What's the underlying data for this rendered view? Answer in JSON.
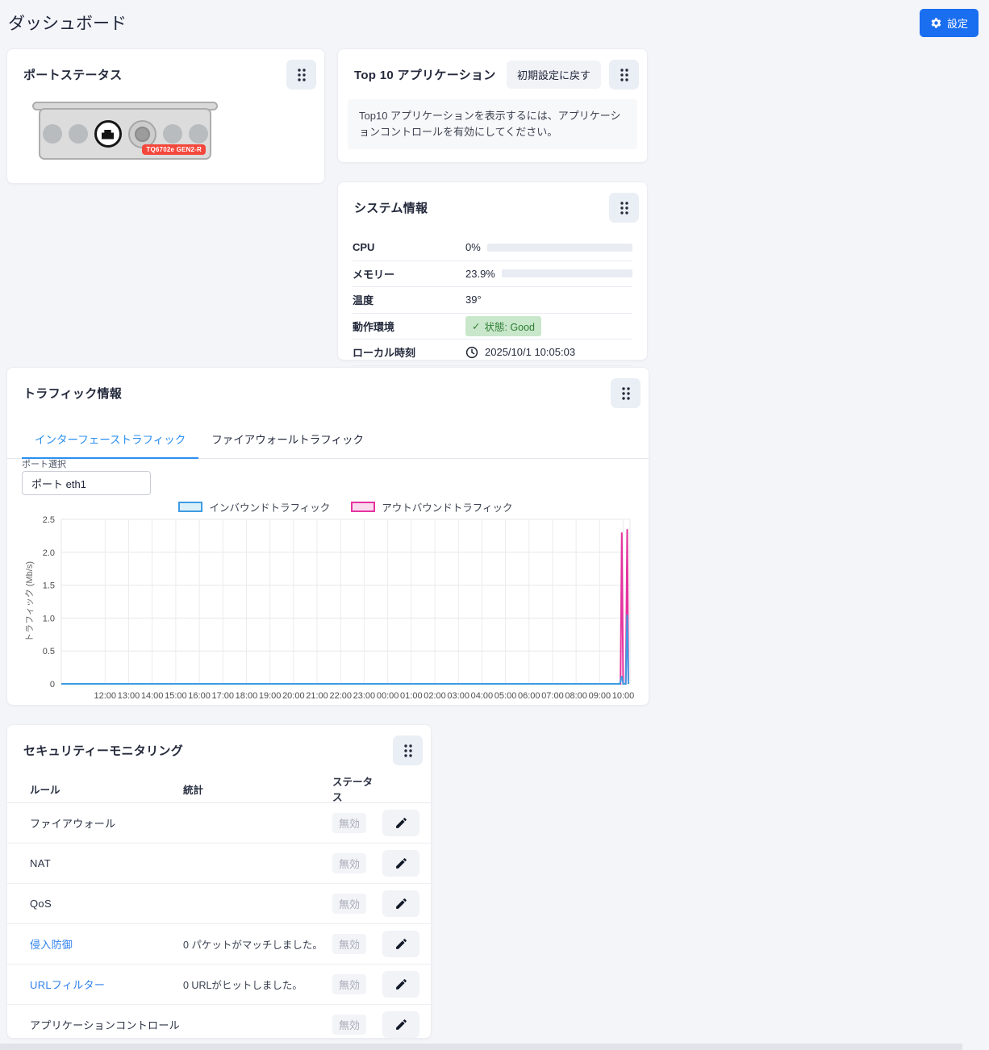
{
  "page": {
    "title": "ダッシュボード",
    "settings_button": "設定"
  },
  "port_status": {
    "title": "ポートステータス",
    "device_model": "TQ6702e GEN2-R"
  },
  "top_applications": {
    "title": "Top 10 アプリケーション",
    "reset_button": "初期設定に戻す",
    "notice": "Top10 アプリケーションを表示するには、アプリケーションコントロールを有効にしてください。"
  },
  "system_info": {
    "title": "システム情報",
    "rows": {
      "cpu": {
        "label": "CPU",
        "value": "0%",
        "percent": 0,
        "bar_color": "#4caf50"
      },
      "memory": {
        "label": "メモリー",
        "value": "23.9%",
        "percent": 23.9,
        "bar_color": "#4caf50"
      },
      "temperature": {
        "label": "温度",
        "value": "39°"
      },
      "environment": {
        "label": "動作環境",
        "badge_check": "✓",
        "badge": "状態: Good"
      },
      "local_time": {
        "label": "ローカル時刻",
        "value": "2025/10/1 10:05:03"
      }
    }
  },
  "traffic": {
    "title": "トラフィック情報",
    "tabs": [
      {
        "label": "インターフェーストラフィック",
        "active": true
      },
      {
        "label": "ファイアウォールトラフィック",
        "active": false
      }
    ],
    "port_select": {
      "label": "ポート選択",
      "value": "ポート eth1"
    },
    "chart_data": {
      "type": "line",
      "ylabel": "トラフィック (Mb/s)",
      "ylim": [
        0,
        2.5
      ],
      "yticks": [
        0,
        0.5,
        1.0,
        1.5,
        2.0,
        2.5
      ],
      "grid": true,
      "legend_position": "top",
      "x_labels": [
        "12:00",
        "13:00",
        "14:00",
        "15:00",
        "16:00",
        "17:00",
        "18:00",
        "19:00",
        "20:00",
        "21:00",
        "22:00",
        "23:00",
        "00:00",
        "01:00",
        "02:00",
        "03:00",
        "04:00",
        "05:00",
        "06:00",
        "07:00",
        "08:00",
        "09:00",
        "10:00"
      ],
      "series": [
        {
          "name": "インバウンドトラフィック",
          "color": "#3f9be2",
          "fill": "#dcf0fa",
          "points": [
            [
              0,
              0
            ],
            [
              0.982,
              0
            ],
            [
              0.9855,
              0.12
            ],
            [
              0.988,
              0
            ],
            [
              0.9925,
              0
            ],
            [
              0.995,
              1.05
            ],
            [
              0.9972,
              0
            ]
          ]
        },
        {
          "name": "アウトバウンドトラフィック",
          "color": "#e5339f",
          "fill": "#f9d9ee",
          "points": [
            [
              0,
              0
            ],
            [
              0.9832,
              0
            ],
            [
              0.9855,
              2.3
            ],
            [
              0.988,
              0
            ],
            [
              0.9925,
              0
            ],
            [
              0.995,
              2.35
            ],
            [
              0.9972,
              0
            ]
          ]
        }
      ]
    }
  },
  "security": {
    "title": "セキュリティーモニタリング",
    "columns": [
      "ルール",
      "統計",
      "ステータス"
    ],
    "rows": [
      {
        "name": "ファイアウォール",
        "link": false,
        "stat": "",
        "status": "無効"
      },
      {
        "name": "NAT",
        "link": false,
        "stat": "",
        "status": "無効"
      },
      {
        "name": "QoS",
        "link": false,
        "stat": "",
        "status": "無効"
      },
      {
        "name": "侵入防御",
        "link": true,
        "stat": "0 パケットがマッチしました。",
        "status": "無効"
      },
      {
        "name": "URLフィルター",
        "link": true,
        "stat": "0 URLがヒットしました。",
        "status": "無効"
      },
      {
        "name": "アプリケーションコントロール",
        "link": false,
        "stat": "",
        "status": "無効"
      }
    ]
  }
}
